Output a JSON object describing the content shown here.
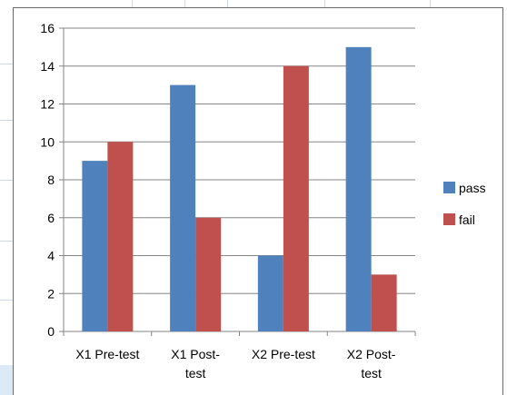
{
  "chart_data": {
    "type": "bar",
    "categories": [
      [
        "X1 Pre-test"
      ],
      [
        "X1 Post-",
        "test"
      ],
      [
        "X2 Pre-test"
      ],
      [
        "X2 Post-",
        "test"
      ]
    ],
    "series": [
      {
        "name": "pass",
        "values": [
          9,
          13,
          4,
          15
        ],
        "color": "#4f81bd"
      },
      {
        "name": "fail",
        "values": [
          10,
          6,
          14,
          3
        ],
        "color": "#c0504d"
      }
    ],
    "title": "",
    "xlabel": "",
    "ylabel": "",
    "ylim": [
      0,
      16
    ],
    "yticks": [
      "0",
      "2",
      "4",
      "6",
      "8",
      "10",
      "12",
      "14",
      "16"
    ],
    "grid": true,
    "legend_position": "right"
  }
}
